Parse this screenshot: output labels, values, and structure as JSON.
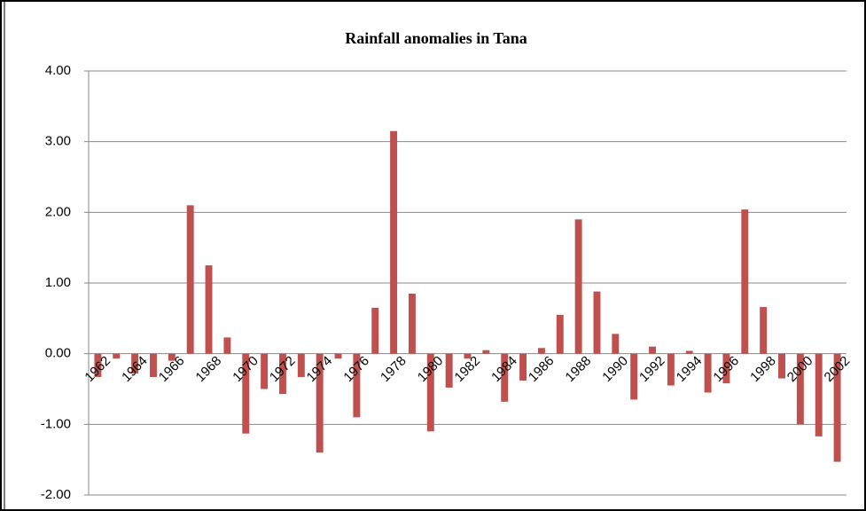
{
  "chart_data": {
    "type": "bar",
    "title": "Rainfall anomalies in Tana",
    "categories": [
      "1962",
      null,
      "1964",
      null,
      "1966",
      null,
      "1968",
      null,
      "1970",
      null,
      "1972",
      null,
      "1974",
      null,
      "1976",
      null,
      "1978",
      null,
      "1980",
      null,
      "1982",
      null,
      "1984",
      null,
      "1986",
      null,
      "1988",
      null,
      "1990",
      null,
      "1992",
      null,
      "1994",
      null,
      "1996",
      null,
      "1998",
      null,
      "2000",
      null,
      "2002"
    ],
    "values": [
      -0.33,
      -0.07,
      -0.28,
      -0.33,
      -0.1,
      2.1,
      1.25,
      0.23,
      -1.13,
      -0.5,
      -0.57,
      -0.33,
      -1.4,
      -0.07,
      -0.9,
      0.65,
      3.15,
      0.85,
      -1.1,
      -0.48,
      -0.07,
      0.05,
      -0.68,
      -0.38,
      0.08,
      0.55,
      1.9,
      0.88,
      0.28,
      -0.65,
      0.1,
      -0.45,
      0.04,
      -0.55,
      -0.42,
      2.04,
      0.66,
      -0.35,
      -1.0,
      -1.17,
      -1.53
    ],
    "color": "#c0504d",
    "ylim": [
      -2,
      4
    ],
    "yticks": [
      {
        "value": -2,
        "label": "-2.00"
      },
      {
        "value": -1,
        "label": "-1.00"
      },
      {
        "value": 0,
        "label": "0.00"
      },
      {
        "value": 1,
        "label": "1.00"
      },
      {
        "value": 2,
        "label": "2.00"
      },
      {
        "value": 3,
        "label": "3.00"
      },
      {
        "value": 4,
        "label": "4.00"
      }
    ],
    "grid": true
  }
}
